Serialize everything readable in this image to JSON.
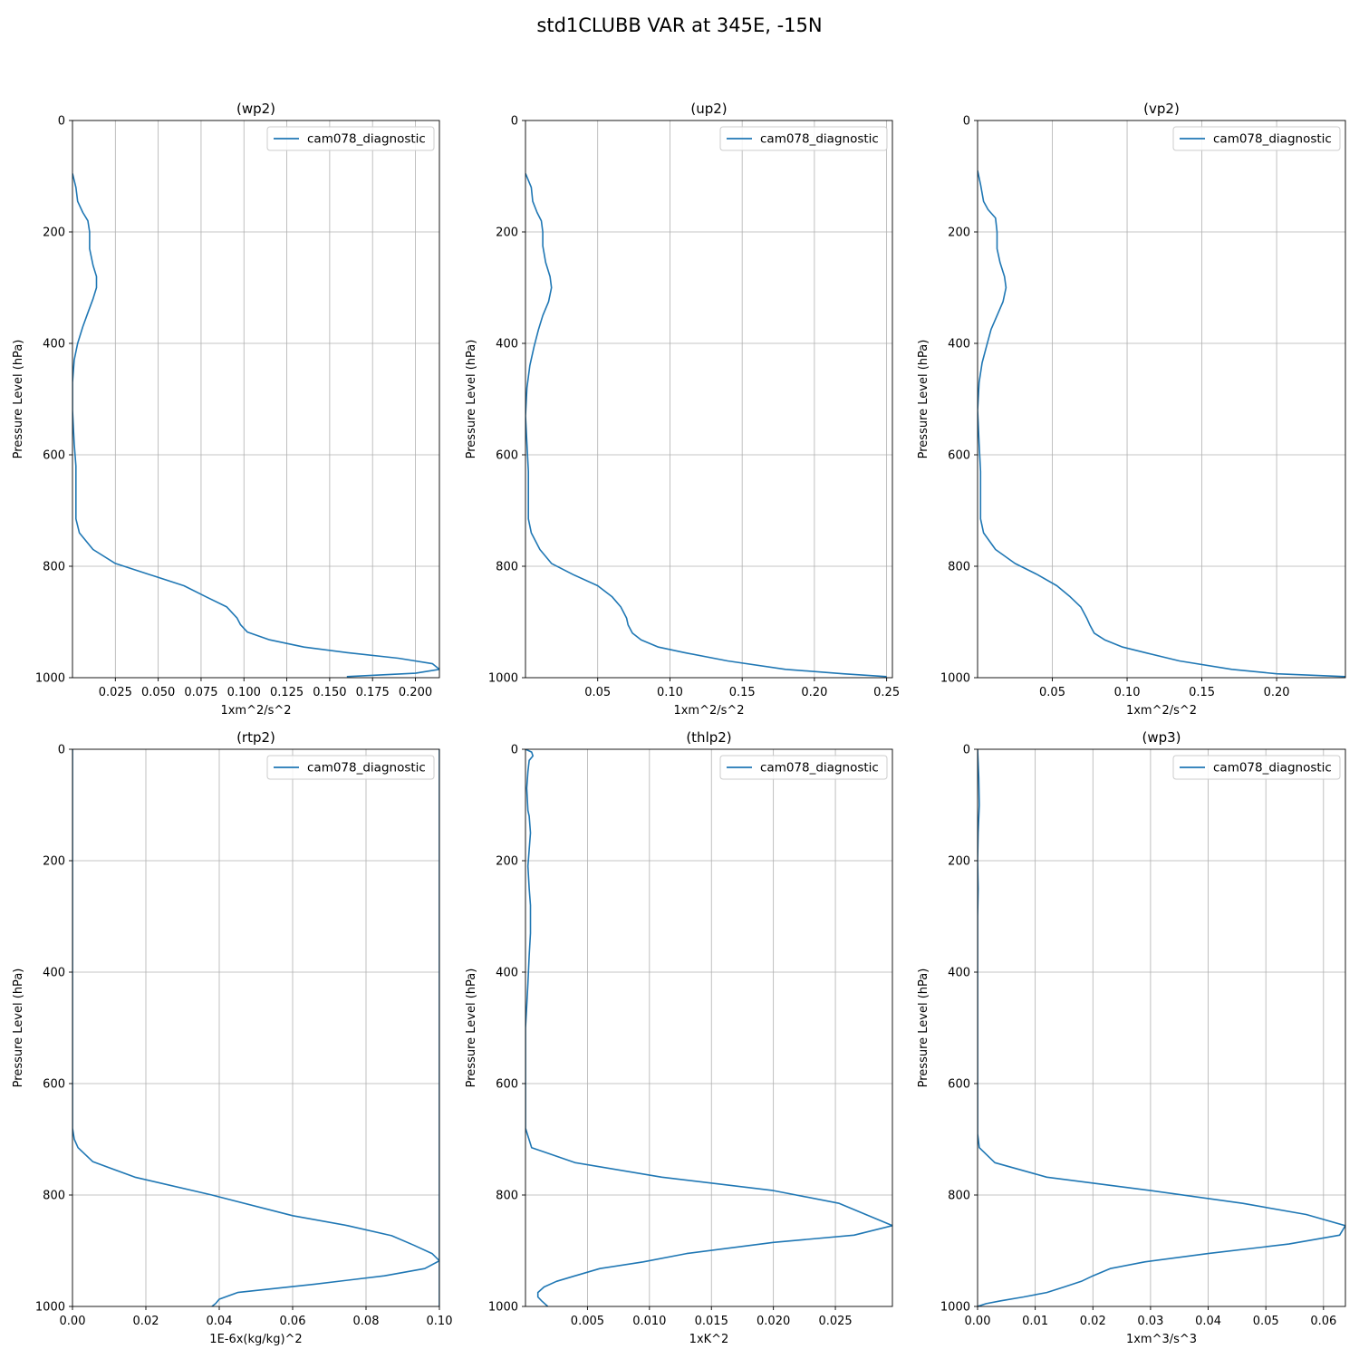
{
  "figure": {
    "suptitle": "std1CLUBB VAR at 345E, -15N"
  },
  "chart_data": [
    {
      "type": "line",
      "title": "(wp2)",
      "xlabel": "1xm^2/s^2",
      "ylabel": "Pressure Level (hPa)",
      "xlim": [
        0.0,
        0.214
      ],
      "ylim": [
        1000,
        0
      ],
      "y_inverted": true,
      "grid": true,
      "legend_position": "top-right",
      "xticks": [
        0.025,
        0.05,
        0.075,
        0.1,
        0.125,
        0.15,
        0.175,
        0.2
      ],
      "xtick_labels": [
        "0.025",
        "0.050",
        "0.075",
        "0.100",
        "0.125",
        "0.150",
        "0.175",
        "0.200"
      ],
      "yticks": [
        0,
        200,
        400,
        600,
        800,
        1000
      ],
      "ytick_labels": [
        "0",
        "200",
        "400",
        "600",
        "800",
        "1000"
      ],
      "series": [
        {
          "name": "cam078_diagnostic",
          "color": "#1f77b4",
          "x": [
            0.0,
            0.002,
            0.003,
            0.006,
            0.009,
            0.01,
            0.01,
            0.012,
            0.014,
            0.014,
            0.012,
            0.009,
            0.006,
            0.003,
            0.001,
            0.0,
            0.0,
            0.001,
            0.002,
            0.002,
            0.002,
            0.004,
            0.012,
            0.025,
            0.045,
            0.065,
            0.078,
            0.09,
            0.096,
            0.098,
            0.102,
            0.115,
            0.135,
            0.16,
            0.19,
            0.21,
            0.214,
            0.2,
            0.16
          ],
          "y": [
            95,
            120,
            145,
            165,
            180,
            200,
            230,
            260,
            280,
            300,
            320,
            345,
            370,
            400,
            430,
            470,
            520,
            580,
            620,
            680,
            715,
            740,
            770,
            795,
            815,
            835,
            855,
            873,
            893,
            905,
            918,
            932,
            945,
            955,
            965,
            975,
            985,
            992,
            998
          ]
        }
      ]
    },
    {
      "type": "line",
      "title": "(up2)",
      "xlabel": "1xm^2/s^2",
      "ylabel": "Pressure Level (hPa)",
      "xlim": [
        0.0,
        0.254
      ],
      "ylim": [
        1000,
        0
      ],
      "y_inverted": true,
      "grid": true,
      "legend_position": "top-right",
      "xticks": [
        0.05,
        0.1,
        0.15,
        0.2,
        0.25
      ],
      "xtick_labels": [
        "0.05",
        "0.10",
        "0.15",
        "0.20",
        "0.25"
      ],
      "yticks": [
        0,
        200,
        400,
        600,
        800,
        1000
      ],
      "ytick_labels": [
        "0",
        "200",
        "400",
        "600",
        "800",
        "1000"
      ],
      "series": [
        {
          "name": "cam078_diagnostic",
          "color": "#1f77b4",
          "x": [
            0.0,
            0.004,
            0.005,
            0.008,
            0.011,
            0.012,
            0.012,
            0.014,
            0.017,
            0.018,
            0.016,
            0.012,
            0.009,
            0.006,
            0.003,
            0.001,
            0.0,
            0.001,
            0.002,
            0.002,
            0.002,
            0.004,
            0.01,
            0.018,
            0.033,
            0.05,
            0.06,
            0.066,
            0.07,
            0.071,
            0.074,
            0.08,
            0.092,
            0.11,
            0.14,
            0.18,
            0.22,
            0.25
          ],
          "y": [
            95,
            120,
            145,
            165,
            180,
            200,
            225,
            255,
            280,
            300,
            325,
            350,
            375,
            405,
            440,
            480,
            530,
            580,
            630,
            680,
            715,
            740,
            770,
            795,
            815,
            835,
            855,
            873,
            893,
            905,
            920,
            932,
            945,
            955,
            970,
            985,
            993,
            998
          ]
        }
      ]
    },
    {
      "type": "line",
      "title": "(vp2)",
      "xlabel": "1xm^2/s^2",
      "ylabel": "Pressure Level (hPa)",
      "xlim": [
        0.0,
        0.246
      ],
      "ylim": [
        1000,
        0
      ],
      "y_inverted": true,
      "grid": true,
      "legend_position": "top-right",
      "xticks": [
        0.05,
        0.1,
        0.15,
        0.2
      ],
      "xtick_labels": [
        "0.05",
        "0.10",
        "0.15",
        "0.20"
      ],
      "yticks": [
        0,
        200,
        400,
        600,
        800,
        1000
      ],
      "ytick_labels": [
        "0",
        "200",
        "400",
        "600",
        "800",
        "1000"
      ],
      "series": [
        {
          "name": "cam078_diagnostic",
          "color": "#1f77b4",
          "x": [
            0.0,
            0.002,
            0.004,
            0.007,
            0.012,
            0.013,
            0.013,
            0.015,
            0.018,
            0.019,
            0.017,
            0.013,
            0.009,
            0.006,
            0.003,
            0.001,
            0.0,
            0.001,
            0.002,
            0.002,
            0.002,
            0.004,
            0.012,
            0.025,
            0.04,
            0.053,
            0.062,
            0.069,
            0.073,
            0.075,
            0.078,
            0.085,
            0.097,
            0.112,
            0.135,
            0.17,
            0.2,
            0.246
          ],
          "y": [
            90,
            115,
            145,
            160,
            175,
            200,
            230,
            255,
            280,
            300,
            325,
            350,
            375,
            405,
            435,
            470,
            520,
            580,
            630,
            680,
            715,
            740,
            770,
            795,
            815,
            835,
            855,
            873,
            893,
            905,
            920,
            932,
            945,
            955,
            970,
            985,
            993,
            998
          ]
        }
      ]
    },
    {
      "type": "line",
      "title": "(rtp2)",
      "xlabel": "1E-6x(kg/kg)^2",
      "ylabel": "Pressure Level (hPa)",
      "xlim": [
        0.0,
        0.1
      ],
      "ylim": [
        1000,
        0
      ],
      "y_inverted": true,
      "grid": true,
      "legend_position": "top-right",
      "xticks": [
        0.0,
        0.02,
        0.04,
        0.06,
        0.08,
        0.1
      ],
      "xtick_labels": [
        "0.00",
        "0.02",
        "0.04",
        "0.06",
        "0.08",
        "0.10"
      ],
      "yticks": [
        0,
        200,
        400,
        600,
        800,
        1000
      ],
      "ytick_labels": [
        "0",
        "200",
        "400",
        "600",
        "800",
        "1000"
      ],
      "series": [
        {
          "name": "cam078_diagnostic",
          "color": "#1f77b4",
          "x": [
            0.1,
            0.1,
            0.1,
            0.1,
            0.1,
            0.1,
            0.1,
            0.1,
            0.1,
            0.1,
            0.1,
            0.1,
            0.1,
            0.1,
            0.1,
            0.1,
            0.1,
            0.1
          ],
          "y": [
            0,
            100,
            200,
            300,
            400,
            500,
            600,
            700,
            800,
            850,
            870,
            890,
            905,
            920,
            932,
            945,
            960,
            1000
          ]
        },
        {
          "name": "",
          "color": "#1f77b4",
          "x": [
            0.0,
            0.0,
            0.0,
            0.0,
            0.0,
            0.0,
            0.0,
            0.0,
            0.0,
            0.0005,
            0.0015,
            0.0055,
            0.017,
            0.038,
            0.06,
            0.075,
            0.087,
            0.093,
            0.098,
            0.1,
            0.096,
            0.085,
            0.066,
            0.045,
            0.04,
            0.039,
            0.038
          ],
          "y": [
            0,
            100,
            200,
            300,
            400,
            500,
            600,
            650,
            680,
            700,
            715,
            740,
            768,
            800,
            837,
            855,
            873,
            890,
            905,
            918,
            932,
            945,
            960,
            975,
            987,
            995,
            1000
          ]
        }
      ]
    },
    {
      "type": "line",
      "title": "(thlp2)",
      "xlabel": "1xK^2",
      "ylabel": "Pressure Level (hPa)",
      "xlim": [
        0.0,
        0.0296
      ],
      "ylim": [
        1000,
        0
      ],
      "y_inverted": true,
      "grid": true,
      "legend_position": "top-right",
      "xticks": [
        0.005,
        0.01,
        0.015,
        0.02,
        0.025
      ],
      "xtick_labels": [
        "0.005",
        "0.010",
        "0.015",
        "0.020",
        "0.025"
      ],
      "yticks": [
        0,
        200,
        400,
        600,
        800,
        1000
      ],
      "ytick_labels": [
        "0",
        "200",
        "400",
        "600",
        "800",
        "1000"
      ],
      "series": [
        {
          "name": "cam078_diagnostic",
          "color": "#1f77b4",
          "x": [
            0.0,
            0.0005,
            0.0006,
            0.0003,
            0.0002,
            0.0001,
            0.0002,
            0.0003,
            0.0004,
            0.0003,
            0.0002,
            0.0003,
            0.0004,
            0.0004,
            0.0004,
            0.0003,
            0.0002,
            0.0001,
            0.0,
            0.0,
            0.0,
            0.0,
            0.0,
            0.0005,
            0.004,
            0.011,
            0.02,
            0.0253,
            0.0296,
            0.0265,
            0.02,
            0.013,
            0.0095,
            0.006,
            0.004,
            0.0025,
            0.0015,
            0.001,
            0.001,
            0.0013,
            0.0018
          ],
          "y": [
            0,
            5,
            12,
            20,
            40,
            70,
            110,
            120,
            150,
            180,
            210,
            250,
            280,
            300,
            330,
            370,
            420,
            460,
            500,
            550,
            600,
            650,
            680,
            715,
            742,
            768,
            792,
            815,
            855,
            872,
            885,
            905,
            920,
            932,
            945,
            955,
            965,
            975,
            983,
            990,
            1000
          ]
        }
      ]
    },
    {
      "type": "line",
      "title": "(wp3)",
      "xlabel": "1xm^3/s^3",
      "ylabel": "Pressure Level (hPa)",
      "xlim": [
        0.0,
        0.0638
      ],
      "ylim": [
        1000,
        0
      ],
      "y_inverted": true,
      "grid": true,
      "legend_position": "top-right",
      "xticks": [
        0.0,
        0.01,
        0.02,
        0.03,
        0.04,
        0.05,
        0.06
      ],
      "xtick_labels": [
        "0.00",
        "0.01",
        "0.02",
        "0.03",
        "0.04",
        "0.05",
        "0.06"
      ],
      "yticks": [
        0,
        200,
        400,
        600,
        800,
        1000
      ],
      "ytick_labels": [
        "0",
        "200",
        "400",
        "600",
        "800",
        "1000"
      ],
      "series": [
        {
          "name": "cam078_diagnostic",
          "color": "#1f77b4",
          "x": [
            0.0,
            0.0002,
            0.0003,
            0.0001,
            0.0,
            0.0001,
            0.0,
            0.0,
            0.0,
            0.0,
            0.0,
            0.0,
            0.0003,
            0.003,
            0.012,
            0.03,
            0.046,
            0.057,
            0.0638,
            0.0628,
            0.054,
            0.04,
            0.029,
            0.023,
            0.02,
            0.018,
            0.015,
            0.012,
            0.008,
            0.004,
            0.0015,
            0.0
          ],
          "y": [
            0,
            50,
            100,
            150,
            200,
            250,
            300,
            350,
            450,
            550,
            650,
            690,
            715,
            742,
            768,
            792,
            815,
            835,
            855,
            872,
            888,
            905,
            920,
            932,
            945,
            955,
            965,
            975,
            983,
            990,
            995,
            1000
          ]
        }
      ]
    }
  ]
}
